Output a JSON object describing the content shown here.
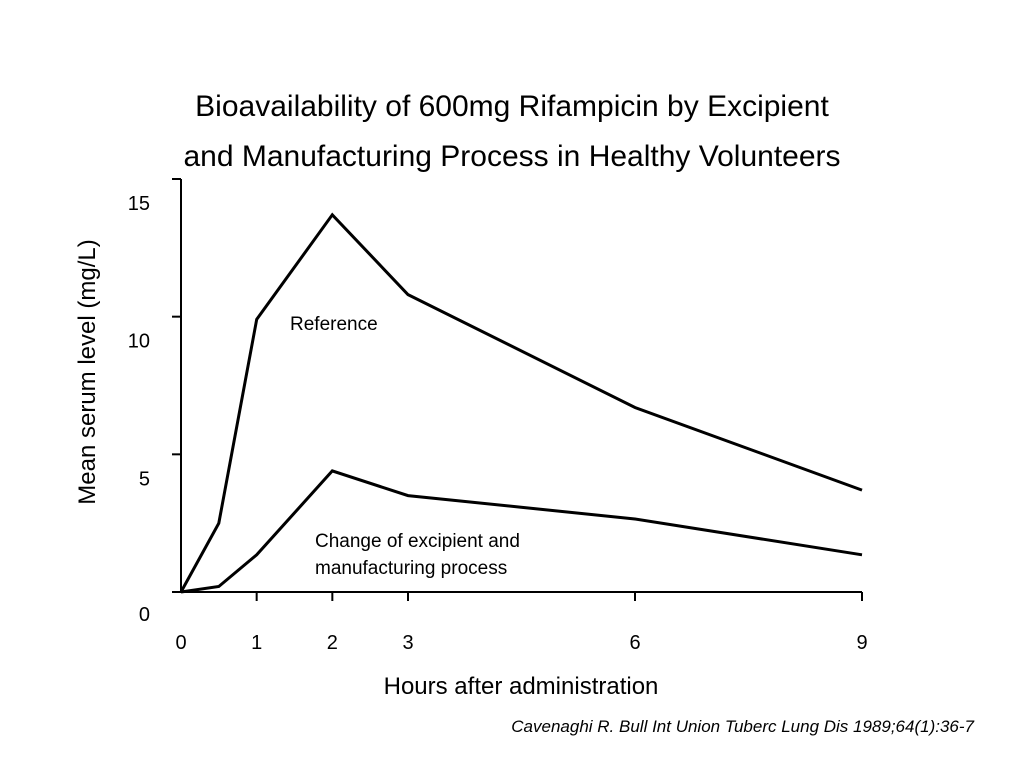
{
  "chart_data": {
    "type": "line",
    "title_lines": [
      "Bioavailability of 600mg Rifampicin by Excipient",
      "and Manufacturing Process in Healthy Volunteers"
    ],
    "xlabel": "Hours after administration",
    "ylabel": "Mean serum level (mg/L)",
    "xlim": [
      0,
      9
    ],
    "ylim": [
      0,
      15
    ],
    "x_ticks": [
      0,
      1,
      2,
      3,
      6,
      9
    ],
    "y_ticks": [
      0,
      5,
      10,
      15
    ],
    "x_tick_labels": [
      "0",
      "1",
      "2",
      "3",
      "6",
      "9"
    ],
    "y_tick_labels": [
      "0",
      "5",
      "10",
      "15"
    ],
    "grid": false,
    "legend": "none",
    "series": [
      {
        "name": "Reference",
        "x": [
          0,
          0.5,
          1,
          2,
          3,
          6,
          9
        ],
        "y": [
          0,
          2.5,
          9.9,
          13.7,
          10.8,
          6.7,
          3.7
        ]
      },
      {
        "name": "Change of excipient and manufacturing process",
        "name_lines": [
          "Change of excipient and",
          "manufacturing process"
        ],
        "x": [
          0,
          0.5,
          1,
          2,
          3,
          6,
          9
        ],
        "y": [
          0,
          0.2,
          1.35,
          4.4,
          3.5,
          2.65,
          1.35
        ]
      }
    ]
  },
  "citation": "Cavenaghi R.  Bull Int Union Tuberc Lung Dis 1989;64(1):36-7",
  "colors": {
    "line": "#000000",
    "background": "#ffffff"
  }
}
